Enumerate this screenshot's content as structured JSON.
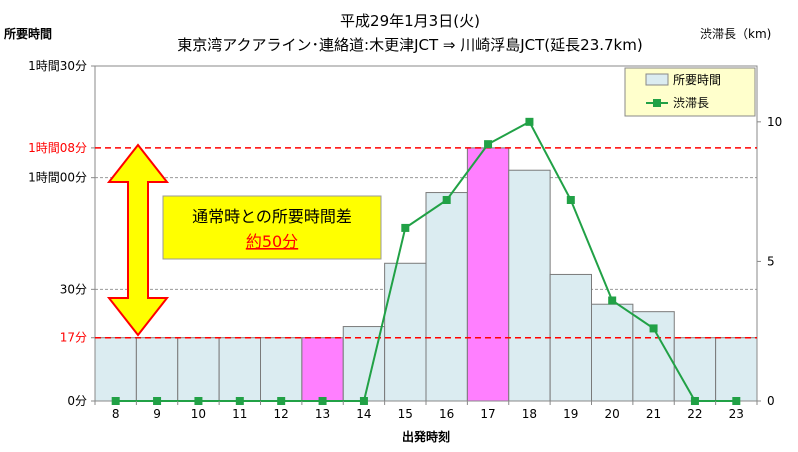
{
  "chart_data": {
    "type": "bar",
    "title_line1": "平成29年1月3日(火)",
    "title_line2": "東京湾アクアライン･連絡道:木更津JCT ⇒ 川崎浮島JCT(延長23.7km)",
    "left_axis_label": "所要時間",
    "right_axis_label": "渋滞長（km)",
    "xlabel": "出発時刻",
    "categories": [
      "8",
      "9",
      "10",
      "11",
      "12",
      "13",
      "14",
      "15",
      "16",
      "17",
      "18",
      "19",
      "20",
      "21",
      "22",
      "23"
    ],
    "series": [
      {
        "name": "所要時間",
        "axis": "left",
        "unit": "minutes",
        "values": [
          17,
          17,
          17,
          17,
          17,
          17,
          20,
          37,
          56,
          68,
          62,
          34,
          26,
          24,
          17,
          17
        ],
        "highlight_indices": [
          5,
          9
        ]
      },
      {
        "name": "渋滞長",
        "axis": "right",
        "unit": "km",
        "values": [
          0,
          0,
          0,
          0,
          0,
          0,
          0,
          6.2,
          7.2,
          9.2,
          10,
          7.2,
          3.6,
          2.6,
          0,
          0
        ]
      }
    ],
    "left_axis": {
      "ylim": [
        0,
        90
      ],
      "ticks": [
        {
          "value": 0,
          "label": "0分",
          "color": "#000000"
        },
        {
          "value": 17,
          "label": "17分",
          "color": "#ff0000"
        },
        {
          "value": 30,
          "label": "30分",
          "color": "#000000"
        },
        {
          "value": 60,
          "label": "1時間00分",
          "color": "#000000"
        },
        {
          "value": 68,
          "label": "1時間08分",
          "color": "#ff0000"
        },
        {
          "value": 90,
          "label": "1時間30分",
          "color": "#000000"
        }
      ]
    },
    "right_axis": {
      "ylim": [
        0,
        12
      ],
      "ticks": [
        0,
        5,
        10
      ]
    },
    "reference_lines": [
      17,
      68
    ],
    "annotation": {
      "line1": "通常時との所要時間差",
      "line2": "約50分"
    },
    "legend_position": "top-right",
    "colors": {
      "bar": "#dbecf1",
      "bar_highlight": "#ff7fff",
      "line": "#21a146",
      "reference": "#ff0000",
      "annotation_box": "#ffff00",
      "arrow": "#ffff00",
      "arrow_stroke": "#ff0000"
    }
  }
}
